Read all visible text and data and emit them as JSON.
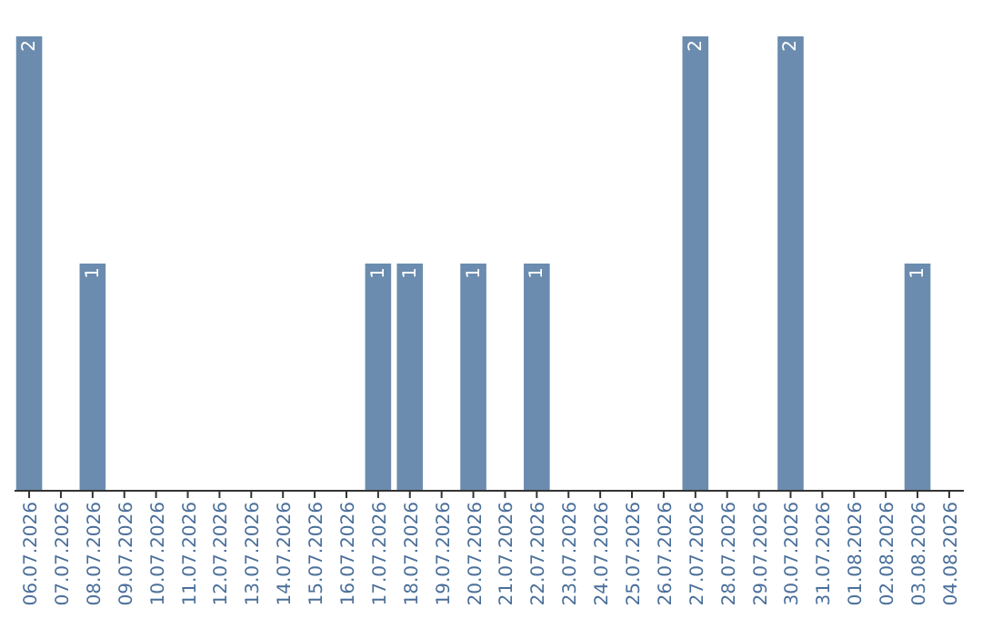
{
  "chart_data": {
    "type": "bar",
    "categories": [
      "06.07.2026",
      "07.07.2026",
      "08.07.2026",
      "09.07.2026",
      "10.07.2026",
      "11.07.2026",
      "12.07.2026",
      "13.07.2026",
      "14.07.2026",
      "15.07.2026",
      "16.07.2026",
      "17.07.2026",
      "18.07.2026",
      "19.07.2026",
      "20.07.2026",
      "21.07.2026",
      "22.07.2026",
      "23.07.2026",
      "24.07.2026",
      "25.07.2026",
      "26.07.2026",
      "27.07.2026",
      "28.07.2026",
      "29.07.2026",
      "30.07.2026",
      "31.07.2026",
      "01.08.2026",
      "02.08.2026",
      "03.08.2026",
      "04.08.2026"
    ],
    "values": [
      2,
      0,
      1,
      0,
      0,
      0,
      0,
      0,
      0,
      0,
      0,
      1,
      1,
      0,
      1,
      0,
      1,
      0,
      0,
      0,
      0,
      2,
      0,
      0,
      2,
      0,
      0,
      0,
      1,
      0
    ],
    "value_labels": [
      "2",
      null,
      "1",
      null,
      null,
      null,
      null,
      null,
      null,
      null,
      null,
      "1",
      "1",
      null,
      "1",
      null,
      "1",
      null,
      null,
      null,
      null,
      "2",
      null,
      null,
      "2",
      null,
      null,
      null,
      "1",
      null
    ],
    "color": "#6b8cae"
  }
}
